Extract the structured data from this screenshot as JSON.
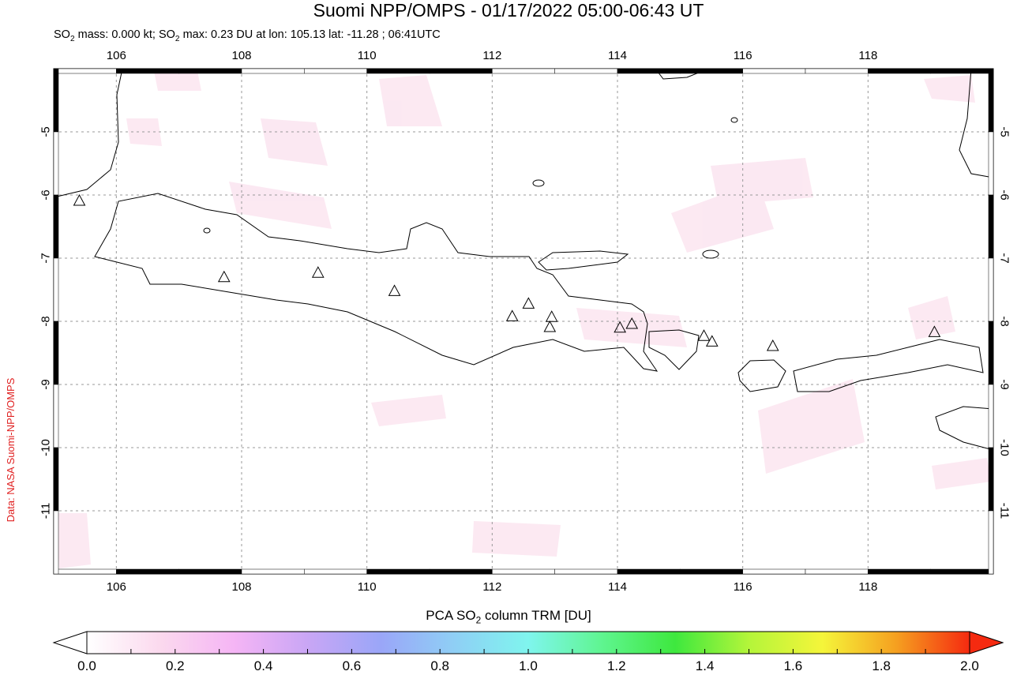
{
  "title": "Suomi NPP/OMPS - 01/17/2022 05:00-06:43 UT",
  "subtitle": {
    "mass_prefix": "SO",
    "mass_rest": " mass: 0.000 kt; SO",
    "max_rest": " max: 0.23 DU at lon: 105.13 lat: -11.28 ; 06:41UTC",
    "sub": "2"
  },
  "credit": "Data: NASA Suomi-NPP/OMPS",
  "map": {
    "lon_range": [
      105,
      120
    ],
    "lat_range": [
      -12,
      -4
    ],
    "lon_ticks": [
      "106",
      "108",
      "110",
      "112",
      "114",
      "116",
      "118"
    ],
    "lat_ticks": [
      "-5",
      "-6",
      "-7",
      "-8",
      "-9",
      "-10",
      "-11"
    ],
    "volcanoes": [
      [
        105.41,
        -6.1
      ],
      [
        107.72,
        -7.31
      ],
      [
        109.22,
        -7.24
      ],
      [
        110.44,
        -7.53
      ],
      [
        112.32,
        -7.93
      ],
      [
        112.58,
        -7.73
      ],
      [
        112.95,
        -7.94
      ],
      [
        112.92,
        -8.1
      ],
      [
        114.04,
        -8.11
      ],
      [
        114.23,
        -8.05
      ],
      [
        115.38,
        -8.24
      ],
      [
        115.51,
        -8.33
      ],
      [
        116.48,
        -8.4
      ],
      [
        119.06,
        -8.18
      ]
    ]
  },
  "colorbar": {
    "label_pre": "PCA SO",
    "label_sub": "2",
    "label_post": " column TRM [DU]",
    "ticks": [
      "0.0",
      "0.2",
      "0.4",
      "0.6",
      "0.8",
      "1.0",
      "1.2",
      "1.4",
      "1.6",
      "1.8",
      "2.0"
    ],
    "range": [
      0,
      2
    ],
    "colors": [
      "#ffffff",
      "#fbd9ee",
      "#f5b5f5",
      "#c9a6f5",
      "#9aa6f8",
      "#8fcff5",
      "#7ff5ee",
      "#5ff590",
      "#3ee83e",
      "#b4f53a",
      "#f5f53a",
      "#f5a020",
      "#f52a10"
    ]
  }
}
